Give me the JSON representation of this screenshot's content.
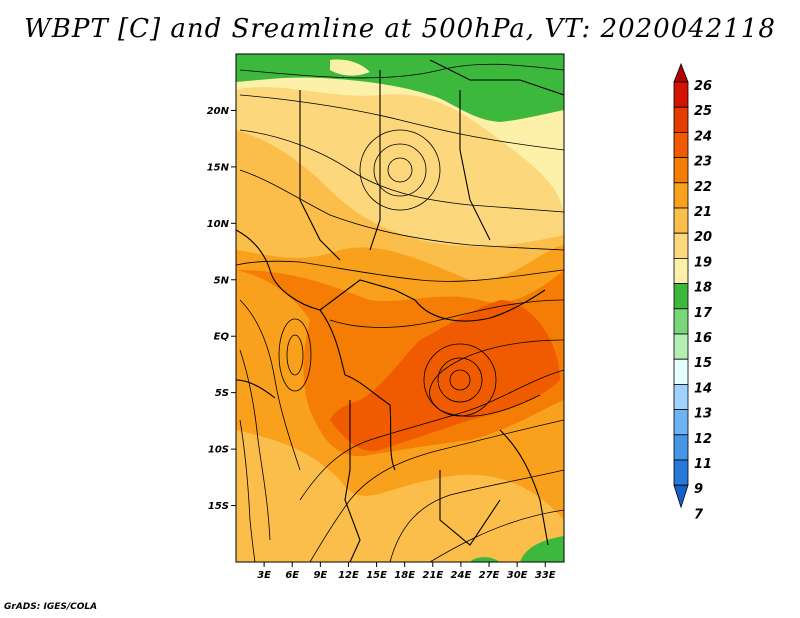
{
  "title": "WBPT [C] and Sreamline at 500hPa, VT: 2020042118",
  "footer": "GrADS: IGES/COLA",
  "map": {
    "lon_range": [
      0,
      35
    ],
    "lat_range": [
      -20,
      25
    ],
    "lat_ticks": [
      "20N",
      "15N",
      "10N",
      "5N",
      "EQ",
      "5S",
      "10S",
      "15S"
    ],
    "lon_ticks": [
      "3E",
      "6E",
      "9E",
      "12E",
      "15E",
      "18E",
      "21E",
      "24E",
      "27E",
      "30E",
      "33E"
    ]
  },
  "colorbar": {
    "labels": [
      "26",
      "25",
      "24",
      "23",
      "22",
      "21",
      "20",
      "19",
      "18",
      "17",
      "16",
      "15",
      "14",
      "13",
      "12",
      "11",
      "9",
      "7"
    ],
    "colors": {
      "c26": "#b40000",
      "c25": "#d21400",
      "c24": "#e63c00",
      "c23": "#f05a00",
      "c22": "#f57d05",
      "c21": "#f9a01c",
      "c20": "#fbbe4a",
      "c19": "#fcd77c",
      "c18": "#fdf0a8",
      "c17": "#3cb93c",
      "c16": "#78d778",
      "c15": "#b4f0b4",
      "c14": "#e6ffff",
      "c13": "#a0d2ff",
      "c12": "#6eb4f5",
      "c11": "#4696e6",
      "c9": "#2878d7",
      "c7": "#1460c8"
    }
  }
}
